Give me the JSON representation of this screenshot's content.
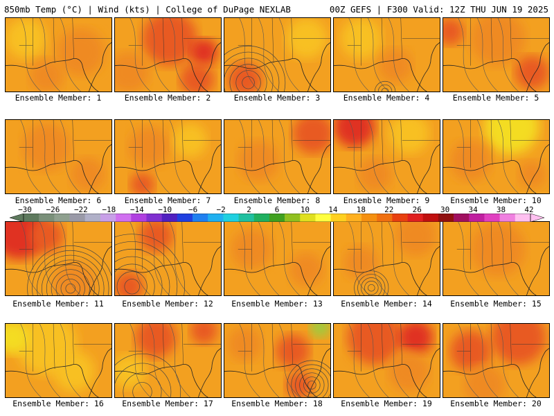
{
  "header": {
    "left": "850mb Temp (°C) | Wind (kts) | College of DuPage NEXLAB",
    "right": "00Z GEFS | F300 Valid: 12Z THU JUN 19 2025"
  },
  "colorbar": {
    "labels": [
      "-30",
      "-26",
      "-22",
      "-18",
      "-14",
      "-10",
      "-6",
      "-2",
      "2",
      "6",
      "10",
      "14",
      "18",
      "22",
      "26",
      "30",
      "34",
      "38",
      "42"
    ],
    "colors": [
      "#5e7a5e",
      "#7a907a",
      "#8fa08f",
      "#9a9aa8",
      "#b0b0c8",
      "#c8a0e8",
      "#d070f0",
      "#b040e0",
      "#8030d0",
      "#5020c0",
      "#2040e0",
      "#2080f0",
      "#20b0f0",
      "#20d0e0",
      "#20c0a0",
      "#20b060",
      "#40a020",
      "#90c020",
      "#e0e020",
      "#ffff40",
      "#ffd020",
      "#ffb020",
      "#f59010",
      "#f07010",
      "#e84010",
      "#e02020",
      "#c01010",
      "#901010",
      "#a01060",
      "#c020a0",
      "#e040c0",
      "#f080e0",
      "#ffc0f0"
    ]
  },
  "palette": {
    "light": "#f8c020",
    "mid": "#f3a020",
    "warm": "#ef8a20",
    "hot": "#e85a20",
    "red": "#e03020",
    "yellow": "#f4dc20",
    "green": "#9ccc40"
  },
  "panels": [
    {
      "label": "Ensemble Member: 1",
      "blobs": [
        {
          "cx": 30,
          "cy": 30,
          "r": 30,
          "tone": "light"
        },
        {
          "cx": 110,
          "cy": 50,
          "r": 35,
          "tone": "warm"
        },
        {
          "cx": 60,
          "cy": 85,
          "r": 25,
          "tone": "warm"
        }
      ],
      "rings": []
    },
    {
      "label": "Ensemble Member: 2",
      "blobs": [
        {
          "cx": 80,
          "cy": 30,
          "r": 40,
          "tone": "hot"
        },
        {
          "cx": 130,
          "cy": 50,
          "r": 20,
          "tone": "red"
        },
        {
          "cx": 20,
          "cy": 80,
          "r": 30,
          "tone": "warm"
        },
        {
          "cx": 120,
          "cy": 90,
          "r": 25,
          "tone": "hot"
        }
      ],
      "rings": []
    },
    {
      "label": "Ensemble Member: 3",
      "blobs": [
        {
          "cx": 30,
          "cy": 90,
          "r": 25,
          "tone": "hot"
        },
        {
          "cx": 120,
          "cy": 30,
          "r": 30,
          "tone": "light"
        }
      ],
      "rings": [
        {
          "cx": 35,
          "cy": 95,
          "n": 6,
          "step": 9
        }
      ]
    },
    {
      "label": "Ensemble Member: 4",
      "blobs": [
        {
          "cx": 40,
          "cy": 30,
          "r": 30,
          "tone": "light"
        },
        {
          "cx": 90,
          "cy": 70,
          "r": 25,
          "tone": "warm"
        }
      ],
      "rings": [
        {
          "cx": 75,
          "cy": 108,
          "n": 3,
          "step": 5
        }
      ]
    },
    {
      "label": "Ensemble Member: 5",
      "blobs": [
        {
          "cx": 80,
          "cy": 30,
          "r": 40,
          "tone": "warm"
        },
        {
          "cx": 130,
          "cy": 80,
          "r": 25,
          "tone": "hot"
        },
        {
          "cx": 10,
          "cy": 20,
          "r": 20,
          "tone": "hot"
        }
      ],
      "rings": []
    },
    {
      "label": "Ensemble Member: 6",
      "blobs": [
        {
          "cx": 60,
          "cy": 40,
          "r": 35,
          "tone": "warm"
        },
        {
          "cx": 120,
          "cy": 80,
          "r": 25,
          "tone": "warm"
        }
      ],
      "rings": []
    },
    {
      "label": "Ensemble Member: 7",
      "blobs": [
        {
          "cx": 50,
          "cy": 40,
          "r": 30,
          "tone": "warm"
        },
        {
          "cx": 110,
          "cy": 30,
          "r": 25,
          "tone": "light"
        },
        {
          "cx": 40,
          "cy": 95,
          "r": 18,
          "tone": "hot"
        }
      ],
      "rings": []
    },
    {
      "label": "Ensemble Member: 8",
      "blobs": [
        {
          "cx": 130,
          "cy": 20,
          "r": 30,
          "tone": "hot"
        },
        {
          "cx": 50,
          "cy": 60,
          "r": 30,
          "tone": "warm"
        }
      ],
      "rings": []
    },
    {
      "label": "Ensemble Member: 9",
      "blobs": [
        {
          "cx": 30,
          "cy": 10,
          "r": 30,
          "tone": "red"
        },
        {
          "cx": 110,
          "cy": 20,
          "r": 30,
          "tone": "light"
        },
        {
          "cx": 60,
          "cy": 80,
          "r": 25,
          "tone": "warm"
        }
      ],
      "rings": []
    },
    {
      "label": "Ensemble Member: 10",
      "blobs": [
        {
          "cx": 100,
          "cy": 10,
          "r": 40,
          "tone": "yellow"
        },
        {
          "cx": 40,
          "cy": 60,
          "r": 30,
          "tone": "warm"
        },
        {
          "cx": 130,
          "cy": 80,
          "r": 20,
          "tone": "warm"
        }
      ],
      "rings": []
    },
    {
      "label": "Ensemble Member: 11",
      "blobs": [
        {
          "cx": 20,
          "cy": 15,
          "r": 40,
          "tone": "red"
        },
        {
          "cx": 60,
          "cy": 20,
          "r": 25,
          "tone": "hot"
        },
        {
          "cx": 100,
          "cy": 90,
          "r": 30,
          "tone": "warm"
        }
      ],
      "rings": [
        {
          "cx": 95,
          "cy": 98,
          "n": 9,
          "step": 7
        }
      ]
    },
    {
      "label": "Ensemble Member: 12",
      "blobs": [
        {
          "cx": 20,
          "cy": 95,
          "r": 22,
          "tone": "hot"
        },
        {
          "cx": 60,
          "cy": 20,
          "r": 25,
          "tone": "hot"
        }
      ],
      "rings": [
        {
          "cx": 25,
          "cy": 95,
          "n": 7,
          "step": 11
        }
      ]
    },
    {
      "label": "Ensemble Member: 13",
      "blobs": [
        {
          "cx": 40,
          "cy": 40,
          "r": 30,
          "tone": "warm"
        },
        {
          "cx": 120,
          "cy": 70,
          "r": 25,
          "tone": "warm"
        }
      ],
      "rings": []
    },
    {
      "label": "Ensemble Member: 14",
      "blobs": [
        {
          "cx": 120,
          "cy": 20,
          "r": 30,
          "tone": "warm"
        },
        {
          "cx": 40,
          "cy": 60,
          "r": 25,
          "tone": "warm"
        }
      ],
      "rings": [
        {
          "cx": 55,
          "cy": 97,
          "n": 5,
          "step": 5
        }
      ]
    },
    {
      "label": "Ensemble Member: 15",
      "blobs": [
        {
          "cx": 80,
          "cy": 40,
          "r": 40,
          "tone": "warm"
        }
      ],
      "rings": []
    },
    {
      "label": "Ensemble Member: 16",
      "blobs": [
        {
          "cx": 60,
          "cy": 30,
          "r": 45,
          "tone": "light"
        },
        {
          "cx": 10,
          "cy": 20,
          "r": 25,
          "tone": "yellow"
        },
        {
          "cx": 100,
          "cy": 70,
          "r": 30,
          "tone": "light"
        }
      ],
      "rings": []
    },
    {
      "label": "Ensemble Member: 17",
      "blobs": [
        {
          "cx": 60,
          "cy": 20,
          "r": 30,
          "tone": "hot"
        },
        {
          "cx": 20,
          "cy": 70,
          "r": 25,
          "tone": "light"
        },
        {
          "cx": 130,
          "cy": 10,
          "r": 20,
          "tone": "hot"
        }
      ],
      "rings": [
        {
          "cx": 40,
          "cy": 100,
          "n": 4,
          "step": 14
        }
      ]
    },
    {
      "label": "Ensemble Member: 18",
      "blobs": [
        {
          "cx": 140,
          "cy": 5,
          "r": 15,
          "tone": "green"
        },
        {
          "cx": 30,
          "cy": 30,
          "r": 25,
          "tone": "warm"
        },
        {
          "cx": 100,
          "cy": 40,
          "r": 25,
          "tone": "hot"
        },
        {
          "cx": 110,
          "cy": 90,
          "r": 20,
          "tone": "hot"
        }
      ],
      "rings": [
        {
          "cx": 128,
          "cy": 90,
          "n": 6,
          "step": 6
        }
      ]
    },
    {
      "label": "Ensemble Member: 19",
      "blobs": [
        {
          "cx": 60,
          "cy": 20,
          "r": 40,
          "tone": "hot"
        },
        {
          "cx": 120,
          "cy": 20,
          "r": 25,
          "tone": "red"
        },
        {
          "cx": 110,
          "cy": 70,
          "r": 30,
          "tone": "warm"
        }
      ],
      "rings": []
    },
    {
      "label": "Ensemble Member: 20",
      "blobs": [
        {
          "cx": 110,
          "cy": 20,
          "r": 40,
          "tone": "hot"
        },
        {
          "cx": 40,
          "cy": 40,
          "r": 30,
          "tone": "hot"
        },
        {
          "cx": 60,
          "cy": 90,
          "r": 30,
          "tone": "warm"
        }
      ],
      "rings": []
    }
  ]
}
